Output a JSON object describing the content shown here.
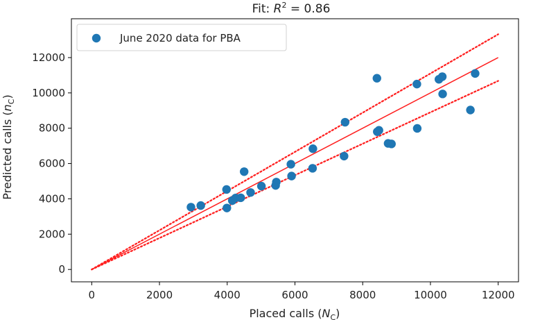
{
  "chart_data": {
    "type": "scatter",
    "title_prefix": "Fit: ",
    "title_r": "R",
    "title_exp": "2",
    "title_suffix": " = 0.86",
    "xlabel_main": "Placed calls (",
    "xlabel_sym": "N",
    "xlabel_sub": "C",
    "xlabel_end": ")",
    "ylabel_main": "Predicted calls (",
    "ylabel_sym": "n",
    "ylabel_sub": "C",
    "ylabel_end": ")",
    "xlim": [
      -600,
      12600
    ],
    "ylim": [
      -700,
      14200
    ],
    "xticks": [
      0,
      2000,
      4000,
      6000,
      8000,
      10000,
      12000
    ],
    "yticks": [
      0,
      2000,
      4000,
      6000,
      8000,
      10000,
      12000
    ],
    "legend_position": "top-left",
    "series": [
      {
        "name": "June 2020 data for PBA",
        "color": "#1f77b4",
        "points": [
          {
            "x": 2930,
            "y": 3530
          },
          {
            "x": 3220,
            "y": 3620
          },
          {
            "x": 3990,
            "y": 3480
          },
          {
            "x": 3980,
            "y": 4530
          },
          {
            "x": 4150,
            "y": 3900
          },
          {
            "x": 4250,
            "y": 4050
          },
          {
            "x": 4400,
            "y": 4060
          },
          {
            "x": 4500,
            "y": 5540
          },
          {
            "x": 4690,
            "y": 4360
          },
          {
            "x": 5010,
            "y": 4720
          },
          {
            "x": 5430,
            "y": 4760
          },
          {
            "x": 5450,
            "y": 4950
          },
          {
            "x": 5880,
            "y": 5960
          },
          {
            "x": 5900,
            "y": 5290
          },
          {
            "x": 6520,
            "y": 5730
          },
          {
            "x": 6530,
            "y": 6840
          },
          {
            "x": 7450,
            "y": 6420
          },
          {
            "x": 7480,
            "y": 8340
          },
          {
            "x": 8420,
            "y": 10830
          },
          {
            "x": 8430,
            "y": 7800
          },
          {
            "x": 8480,
            "y": 7880
          },
          {
            "x": 8750,
            "y": 7140
          },
          {
            "x": 8850,
            "y": 7110
          },
          {
            "x": 9600,
            "y": 10500
          },
          {
            "x": 9610,
            "y": 7990
          },
          {
            "x": 10250,
            "y": 10770
          },
          {
            "x": 10350,
            "y": 10920
          },
          {
            "x": 10360,
            "y": 9940
          },
          {
            "x": 11180,
            "y": 9030
          },
          {
            "x": 11320,
            "y": 11100
          }
        ]
      }
    ],
    "fit_line": {
      "color": "#ff2020",
      "slope": 1.0,
      "x_range": [
        0,
        12000
      ]
    },
    "band_lines": {
      "color": "#ff2020",
      "style": "dotted",
      "upper_slope": 1.11,
      "lower_slope": 0.89,
      "x_range": [
        0,
        12000
      ]
    }
  }
}
